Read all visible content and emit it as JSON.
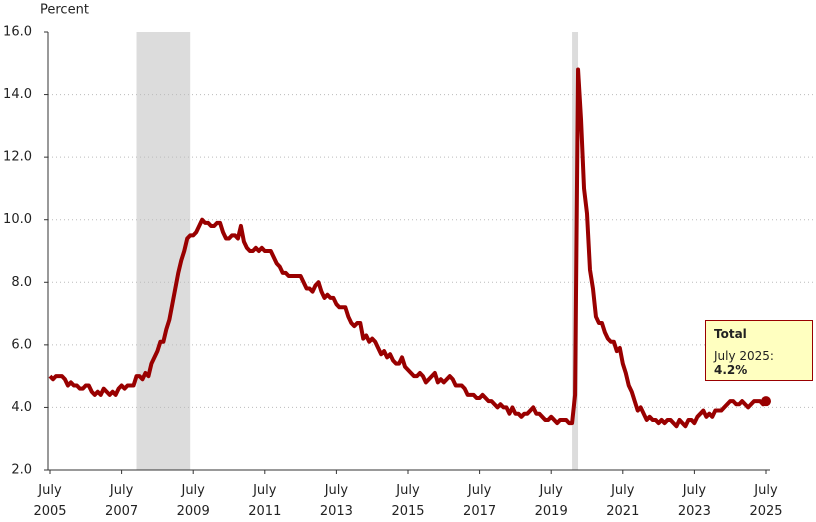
{
  "chart_data": {
    "type": "line",
    "y_label": "Percent",
    "x": [
      "2005-07",
      "2005-08",
      "2005-09",
      "2005-10",
      "2005-11",
      "2005-12",
      "2006-01",
      "2006-02",
      "2006-03",
      "2006-04",
      "2006-05",
      "2006-06",
      "2006-07",
      "2006-08",
      "2006-09",
      "2006-10",
      "2006-11",
      "2006-12",
      "2007-01",
      "2007-02",
      "2007-03",
      "2007-04",
      "2007-05",
      "2007-06",
      "2007-07",
      "2007-08",
      "2007-09",
      "2007-10",
      "2007-11",
      "2007-12",
      "2008-01",
      "2008-02",
      "2008-03",
      "2008-04",
      "2008-05",
      "2008-06",
      "2008-07",
      "2008-08",
      "2008-09",
      "2008-10",
      "2008-11",
      "2008-12",
      "2009-01",
      "2009-02",
      "2009-03",
      "2009-04",
      "2009-05",
      "2009-06",
      "2009-07",
      "2009-08",
      "2009-09",
      "2009-10",
      "2009-11",
      "2009-12",
      "2010-01",
      "2010-02",
      "2010-03",
      "2010-04",
      "2010-05",
      "2010-06",
      "2010-07",
      "2010-08",
      "2010-09",
      "2010-10",
      "2010-11",
      "2010-12",
      "2011-01",
      "2011-02",
      "2011-03",
      "2011-04",
      "2011-05",
      "2011-06",
      "2011-07",
      "2011-08",
      "2011-09",
      "2011-10",
      "2011-11",
      "2011-12",
      "2012-01",
      "2012-02",
      "2012-03",
      "2012-04",
      "2012-05",
      "2012-06",
      "2012-07",
      "2012-08",
      "2012-09",
      "2012-10",
      "2012-11",
      "2012-12",
      "2013-01",
      "2013-02",
      "2013-03",
      "2013-04",
      "2013-05",
      "2013-06",
      "2013-07",
      "2013-08",
      "2013-09",
      "2013-10",
      "2013-11",
      "2013-12",
      "2014-01",
      "2014-02",
      "2014-03",
      "2014-04",
      "2014-05",
      "2014-06",
      "2014-07",
      "2014-08",
      "2014-09",
      "2014-10",
      "2014-11",
      "2014-12",
      "2015-01",
      "2015-02",
      "2015-03",
      "2015-04",
      "2015-05",
      "2015-06",
      "2015-07",
      "2015-08",
      "2015-09",
      "2015-10",
      "2015-11",
      "2015-12",
      "2016-01",
      "2016-02",
      "2016-03",
      "2016-04",
      "2016-05",
      "2016-06",
      "2016-07",
      "2016-08",
      "2016-09",
      "2016-10",
      "2016-11",
      "2016-12",
      "2017-01",
      "2017-02",
      "2017-03",
      "2017-04",
      "2017-05",
      "2017-06",
      "2017-07",
      "2017-08",
      "2017-09",
      "2017-10",
      "2017-11",
      "2017-12",
      "2018-01",
      "2018-02",
      "2018-03",
      "2018-04",
      "2018-05",
      "2018-06",
      "2018-07",
      "2018-08",
      "2018-09",
      "2018-10",
      "2018-11",
      "2018-12",
      "2019-01",
      "2019-02",
      "2019-03",
      "2019-04",
      "2019-05",
      "2019-06",
      "2019-07",
      "2019-08",
      "2019-09",
      "2019-10",
      "2019-11",
      "2019-12",
      "2020-01",
      "2020-02",
      "2020-03",
      "2020-04",
      "2020-05",
      "2020-06",
      "2020-07",
      "2020-08",
      "2020-09",
      "2020-10",
      "2020-11",
      "2020-12",
      "2021-01",
      "2021-02",
      "2021-03",
      "2021-04",
      "2021-05",
      "2021-06",
      "2021-07",
      "2021-08",
      "2021-09",
      "2021-10",
      "2021-11",
      "2021-12",
      "2022-01",
      "2022-02",
      "2022-03",
      "2022-04",
      "2022-05",
      "2022-06",
      "2022-07",
      "2022-08",
      "2022-09",
      "2022-10",
      "2022-11",
      "2022-12",
      "2023-01",
      "2023-02",
      "2023-03",
      "2023-04",
      "2023-05",
      "2023-06",
      "2023-07",
      "2023-08",
      "2023-09",
      "2023-10",
      "2023-11",
      "2023-12",
      "2024-01",
      "2024-02",
      "2024-03",
      "2024-04",
      "2024-05",
      "2024-06",
      "2024-07",
      "2024-08",
      "2024-09",
      "2024-10",
      "2024-11",
      "2024-12",
      "2025-01",
      "2025-02",
      "2025-03",
      "2025-04",
      "2025-05",
      "2025-06",
      "2025-07"
    ],
    "series": [
      {
        "name": "Total",
        "color": "#990000",
        "values": [
          5.0,
          4.9,
          5.0,
          5.0,
          5.0,
          4.9,
          4.7,
          4.8,
          4.7,
          4.7,
          4.6,
          4.6,
          4.7,
          4.7,
          4.5,
          4.4,
          4.5,
          4.4,
          4.6,
          4.5,
          4.4,
          4.5,
          4.4,
          4.6,
          4.7,
          4.6,
          4.7,
          4.7,
          4.7,
          5.0,
          5.0,
          4.9,
          5.1,
          5.0,
          5.4,
          5.6,
          5.8,
          6.1,
          6.1,
          6.5,
          6.8,
          7.3,
          7.8,
          8.3,
          8.7,
          9.0,
          9.4,
          9.5,
          9.5,
          9.6,
          9.8,
          10.0,
          9.9,
          9.9,
          9.8,
          9.8,
          9.9,
          9.9,
          9.6,
          9.4,
          9.4,
          9.5,
          9.5,
          9.4,
          9.8,
          9.3,
          9.1,
          9.0,
          9.0,
          9.1,
          9.0,
          9.1,
          9.0,
          9.0,
          9.0,
          8.8,
          8.6,
          8.5,
          8.3,
          8.3,
          8.2,
          8.2,
          8.2,
          8.2,
          8.2,
          8.0,
          7.8,
          7.8,
          7.7,
          7.9,
          8.0,
          7.7,
          7.5,
          7.6,
          7.5,
          7.5,
          7.3,
          7.2,
          7.2,
          7.2,
          6.9,
          6.7,
          6.6,
          6.7,
          6.7,
          6.2,
          6.3,
          6.1,
          6.2,
          6.1,
          5.9,
          5.7,
          5.8,
          5.6,
          5.7,
          5.5,
          5.4,
          5.4,
          5.6,
          5.3,
          5.2,
          5.1,
          5.0,
          5.0,
          5.1,
          5.0,
          4.8,
          4.9,
          5.0,
          5.1,
          4.8,
          4.9,
          4.8,
          4.9,
          5.0,
          4.9,
          4.7,
          4.7,
          4.7,
          4.6,
          4.4,
          4.4,
          4.4,
          4.3,
          4.3,
          4.4,
          4.3,
          4.2,
          4.2,
          4.1,
          4.0,
          4.1,
          4.0,
          4.0,
          3.8,
          4.0,
          3.8,
          3.8,
          3.7,
          3.8,
          3.8,
          3.9,
          4.0,
          3.8,
          3.8,
          3.7,
          3.6,
          3.6,
          3.7,
          3.6,
          3.5,
          3.6,
          3.6,
          3.6,
          3.5,
          3.5,
          4.4,
          14.8,
          13.2,
          11.0,
          10.2,
          8.4,
          7.8,
          6.9,
          6.7,
          6.7,
          6.4,
          6.2,
          6.1,
          6.1,
          5.8,
          5.9,
          5.4,
          5.1,
          4.7,
          4.5,
          4.2,
          3.9,
          4.0,
          3.8,
          3.6,
          3.7,
          3.6,
          3.6,
          3.5,
          3.6,
          3.5,
          3.6,
          3.6,
          3.5,
          3.4,
          3.6,
          3.5,
          3.4,
          3.6,
          3.6,
          3.5,
          3.7,
          3.8,
          3.9,
          3.7,
          3.8,
          3.7,
          3.9,
          3.9,
          3.9,
          4.0,
          4.1,
          4.2,
          4.2,
          4.1,
          4.1,
          4.2,
          4.1,
          4.0,
          4.1,
          4.2,
          4.2,
          4.2,
          4.1,
          4.2
        ]
      }
    ],
    "xlim": [
      "2005-07",
      "2025-07"
    ],
    "xticks": [
      {
        "value": "2005-07",
        "label": "July 2005"
      },
      {
        "value": "2007-07",
        "label": "July 2007"
      },
      {
        "value": "2009-07",
        "label": "July 2009"
      },
      {
        "value": "2011-07",
        "label": "July 2011"
      },
      {
        "value": "2013-07",
        "label": "July 2013"
      },
      {
        "value": "2015-07",
        "label": "July 2015"
      },
      {
        "value": "2017-07",
        "label": "July 2017"
      },
      {
        "value": "2019-07",
        "label": "July 2019"
      },
      {
        "value": "2021-07",
        "label": "July 2021"
      },
      {
        "value": "2023-07",
        "label": "July 2023"
      },
      {
        "value": "2025-07",
        "label": "July 2025"
      }
    ],
    "ylim": [
      2,
      16
    ],
    "yticks": [
      {
        "value": 2,
        "label": "2.0"
      },
      {
        "value": 4,
        "label": "4.0"
      },
      {
        "value": 6,
        "label": "6.0"
      },
      {
        "value": 8,
        "label": "8.0"
      },
      {
        "value": 10,
        "label": "10.0"
      },
      {
        "value": 12,
        "label": "12.0"
      },
      {
        "value": 14,
        "label": "14.0"
      },
      {
        "value": 16,
        "label": "16.0"
      }
    ],
    "grid": true,
    "recessions": [
      {
        "start": "2007-12",
        "end": "2009-06"
      },
      {
        "start": "2020-02",
        "end": "2020-04"
      }
    ],
    "tooltip": {
      "title": "Total",
      "label": "July 2025:",
      "value_label": "4.2%"
    }
  }
}
